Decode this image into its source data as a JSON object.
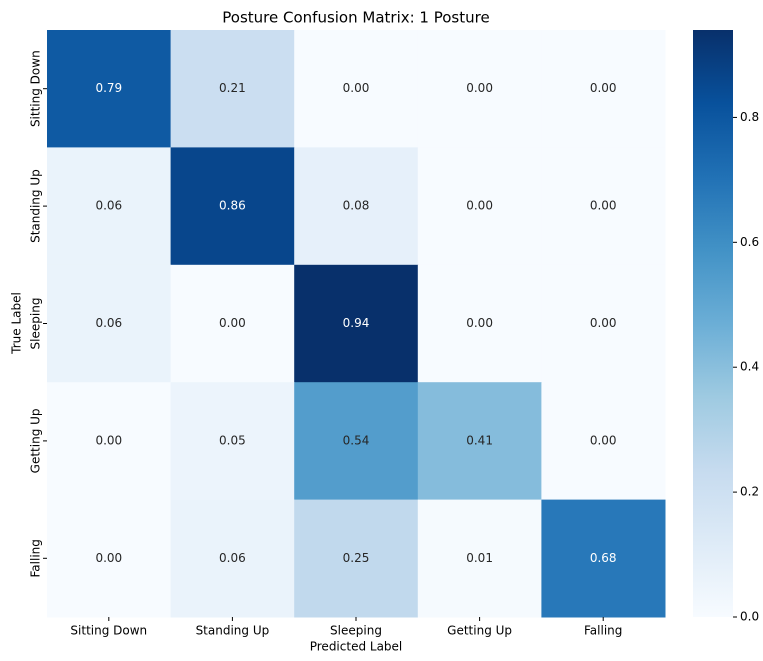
{
  "chart_data": {
    "type": "heatmap",
    "title": "Posture Confusion Matrix: 1 Posture",
    "xlabel": "Predicted Label",
    "ylabel": "True Label",
    "x_categories": [
      "Sitting Down",
      "Standing Up",
      "Sleeping",
      "Getting Up",
      "Falling"
    ],
    "y_categories": [
      "Sitting Down",
      "Standing Up",
      "Sleeping",
      "Getting Up",
      "Falling"
    ],
    "values": [
      [
        0.79,
        0.21,
        0.0,
        0.0,
        0.0
      ],
      [
        0.06,
        0.86,
        0.08,
        0.0,
        0.0
      ],
      [
        0.06,
        0.0,
        0.94,
        0.0,
        0.0
      ],
      [
        0.0,
        0.05,
        0.54,
        0.41,
        0.0
      ],
      [
        0.0,
        0.06,
        0.25,
        0.01,
        0.68
      ]
    ],
    "value_labels": [
      [
        "0.79",
        "0.21",
        "0.00",
        "0.00",
        "0.00"
      ],
      [
        "0.06",
        "0.86",
        "0.08",
        "0.00",
        "0.00"
      ],
      [
        "0.06",
        "0.00",
        "0.94",
        "0.00",
        "0.00"
      ],
      [
        "0.00",
        "0.05",
        "0.54",
        "0.41",
        "0.00"
      ],
      [
        "0.00",
        "0.06",
        "0.25",
        "0.01",
        "0.68"
      ]
    ],
    "colormap": [
      "#f7fbff",
      "#deebf7",
      "#c6dbef",
      "#9ecae1",
      "#6baed6",
      "#4292c6",
      "#2171b5",
      "#08519c",
      "#08306b"
    ],
    "clim": [
      0,
      0.94
    ],
    "cticks": [
      {
        "value": 0,
        "label": "0.0"
      },
      {
        "value": 0.2,
        "label": "0.2"
      },
      {
        "value": 0.4,
        "label": "0.4"
      },
      {
        "value": 0.6,
        "label": "0.6"
      },
      {
        "value": 0.8,
        "label": "0.8"
      }
    ]
  }
}
